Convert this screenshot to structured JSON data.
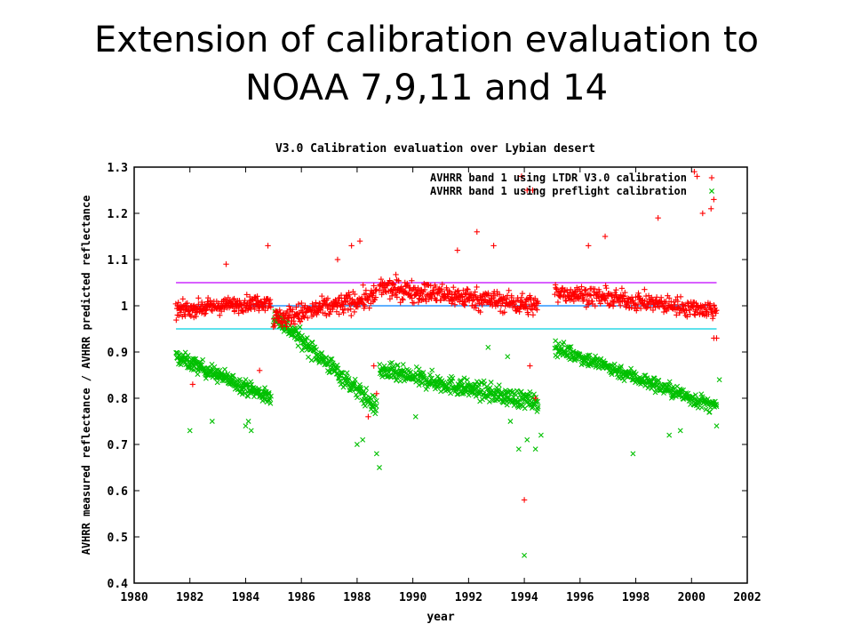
{
  "slide": {
    "title_line1": "Extension of calibration evaluation to",
    "title_line2": "NOAA 7,9,11 and 14"
  },
  "colors": {
    "ltdr_series": "#ff0000",
    "preflight_series": "#00c000",
    "line_105": "#c000ff",
    "line_100": "#0080ff",
    "line_095": "#00d0e0",
    "axis": "#000000"
  },
  "chart_data": {
    "type": "scatter",
    "title": "V3.0 Calibration evaluation over Lybian desert",
    "xlabel": "year",
    "ylabel": "AVHRR measured reflectance / AVHRR predicted reflectance",
    "xlim": [
      1980,
      2002
    ],
    "ylim": [
      0.4,
      1.3
    ],
    "xticks": [
      "1980",
      "1982",
      "1984",
      "1986",
      "1988",
      "1990",
      "1992",
      "1994",
      "1996",
      "1998",
      "2000",
      "2002"
    ],
    "yticks": [
      "0.4",
      "0.5",
      "0.6",
      "0.7",
      "0.8",
      "0.9",
      "1",
      "1.1",
      "1.2",
      "1.3"
    ],
    "legend_position": "top-right",
    "grid": false,
    "reference_lines": [
      {
        "y": 1.05,
        "x": [
          1981.5,
          2000.9
        ],
        "color": "#c000ff"
      },
      {
        "y": 1.0,
        "x": [
          1981.5,
          2000.9
        ],
        "color": "#0080ff"
      },
      {
        "y": 0.95,
        "x": [
          1981.5,
          2000.9
        ],
        "color": "#00d0e0"
      }
    ],
    "series": [
      {
        "name": "AVHRR band 1 using LTDR V3.0 calibration",
        "marker": "plus",
        "color": "#ff0000",
        "segments": [
          {
            "x0": 1981.5,
            "x1": 1984.9,
            "y0": 0.99,
            "y1": 1.01,
            "spread": 0.025,
            "n": 230
          },
          {
            "x0": 1985.0,
            "x1": 1988.7,
            "y0": 0.97,
            "y1": 1.02,
            "spread": 0.035,
            "n": 230
          },
          {
            "x0": 1988.8,
            "x1": 1994.5,
            "y0": 1.04,
            "y1": 1.0,
            "spread": 0.035,
            "n": 360
          },
          {
            "x0": 1995.1,
            "x1": 2000.9,
            "y0": 1.03,
            "y1": 0.99,
            "spread": 0.03,
            "n": 330
          }
        ],
        "points": [
          [
            1982.1,
            0.83
          ],
          [
            1984.5,
            0.86
          ],
          [
            1984.8,
            1.13
          ],
          [
            1983.3,
            1.09
          ],
          [
            1987.3,
            1.1
          ],
          [
            1987.8,
            1.13
          ],
          [
            1988.1,
            1.14
          ],
          [
            1988.4,
            0.76
          ],
          [
            1988.6,
            0.87
          ],
          [
            1988.7,
            0.81
          ],
          [
            1991.6,
            1.12
          ],
          [
            1992.3,
            1.16
          ],
          [
            1992.9,
            1.13
          ],
          [
            1993.9,
            1.28
          ],
          [
            1994.1,
            1.25
          ],
          [
            1994.3,
            1.25
          ],
          [
            1994.0,
            0.58
          ],
          [
            1994.4,
            0.8
          ],
          [
            1994.2,
            0.87
          ],
          [
            1996.3,
            1.13
          ],
          [
            1996.9,
            1.15
          ],
          [
            1998.8,
            1.19
          ],
          [
            2000.1,
            1.29
          ],
          [
            2000.2,
            1.28
          ],
          [
            2000.4,
            1.2
          ],
          [
            2000.7,
            1.21
          ],
          [
            2000.8,
            1.23
          ],
          [
            2000.9,
            0.93
          ],
          [
            2000.8,
            0.93
          ]
        ]
      },
      {
        "name": "AVHRR band 1 using preflight calibration",
        "marker": "cross",
        "color": "#00c000",
        "segments": [
          {
            "x0": 1981.5,
            "x1": 1984.9,
            "y0": 0.89,
            "y1": 0.8,
            "spread": 0.025,
            "n": 230
          },
          {
            "x0": 1985.0,
            "x1": 1988.7,
            "y0": 0.98,
            "y1": 0.78,
            "spread": 0.03,
            "n": 230
          },
          {
            "x0": 1988.8,
            "x1": 1994.5,
            "y0": 0.86,
            "y1": 0.79,
            "spread": 0.03,
            "n": 360
          },
          {
            "x0": 1995.1,
            "x1": 2000.9,
            "y0": 0.91,
            "y1": 0.78,
            "spread": 0.025,
            "n": 330
          }
        ],
        "points": [
          [
            1982.0,
            0.73
          ],
          [
            1982.8,
            0.75
          ],
          [
            1984.0,
            0.74
          ],
          [
            1984.1,
            0.75
          ],
          [
            1984.2,
            0.73
          ],
          [
            1988.0,
            0.7
          ],
          [
            1988.2,
            0.71
          ],
          [
            1988.7,
            0.68
          ],
          [
            1988.8,
            0.65
          ],
          [
            1990.1,
            0.76
          ],
          [
            1993.5,
            0.75
          ],
          [
            1993.8,
            0.69
          ],
          [
            1994.0,
            0.46
          ],
          [
            1994.1,
            0.71
          ],
          [
            1994.4,
            0.69
          ],
          [
            1994.6,
            0.72
          ],
          [
            1997.9,
            0.68
          ],
          [
            1999.6,
            0.73
          ],
          [
            1999.2,
            0.72
          ],
          [
            2000.9,
            0.74
          ],
          [
            2001.0,
            0.84
          ],
          [
            1993.4,
            0.89
          ],
          [
            1992.7,
            0.91
          ]
        ]
      }
    ]
  }
}
